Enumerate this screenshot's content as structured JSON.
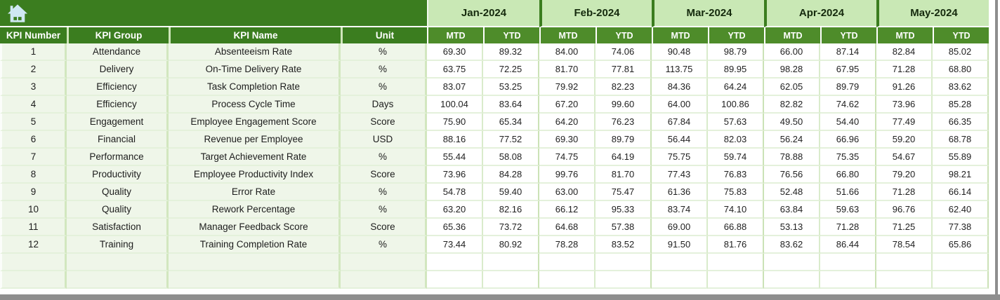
{
  "icons": {
    "home": "home-icon"
  },
  "colors": {
    "header_dark_green": "#3b7d1f",
    "subheader_green": "#4e8c2a",
    "month_header_green": "#c9e8b5",
    "row_tint": "#eff6e9",
    "grid_line_green": "#d9ebcb",
    "scrollbar_gray": "#8e8e8e"
  },
  "table": {
    "left_headers": [
      "KPI Number",
      "KPI Group",
      "KPI Name",
      "Unit"
    ],
    "months": [
      "Jan-2024",
      "Feb-2024",
      "Mar-2024",
      "Apr-2024",
      "May-2024"
    ],
    "sub_headers": [
      "MTD",
      "YTD"
    ],
    "empty_rows": 2,
    "rows": [
      {
        "num": "1",
        "group": "Attendance",
        "name": "Absenteeism Rate",
        "unit": "%",
        "values": [
          "69.30",
          "89.32",
          "84.00",
          "74.06",
          "90.48",
          "98.79",
          "66.00",
          "87.14",
          "82.84",
          "85.02"
        ]
      },
      {
        "num": "2",
        "group": "Delivery",
        "name": "On-Time Delivery Rate",
        "unit": "%",
        "values": [
          "63.75",
          "72.25",
          "81.70",
          "77.81",
          "113.75",
          "89.95",
          "98.28",
          "67.95",
          "71.28",
          "68.80"
        ]
      },
      {
        "num": "3",
        "group": "Efficiency",
        "name": "Task Completion Rate",
        "unit": "%",
        "values": [
          "83.07",
          "53.25",
          "79.92",
          "82.23",
          "84.36",
          "64.24",
          "62.05",
          "89.79",
          "91.26",
          "83.62"
        ]
      },
      {
        "num": "4",
        "group": "Efficiency",
        "name": "Process Cycle Time",
        "unit": "Days",
        "values": [
          "100.04",
          "83.64",
          "67.20",
          "99.60",
          "64.00",
          "100.86",
          "82.82",
          "74.62",
          "73.96",
          "85.28"
        ]
      },
      {
        "num": "5",
        "group": "Engagement",
        "name": "Employee Engagement Score",
        "unit": "Score",
        "values": [
          "75.90",
          "65.34",
          "64.20",
          "76.23",
          "67.84",
          "57.63",
          "49.50",
          "54.40",
          "77.49",
          "66.35"
        ]
      },
      {
        "num": "6",
        "group": "Financial",
        "name": "Revenue per Employee",
        "unit": "USD",
        "values": [
          "88.16",
          "77.52",
          "69.30",
          "89.79",
          "56.44",
          "82.03",
          "56.24",
          "66.96",
          "59.20",
          "68.78"
        ]
      },
      {
        "num": "7",
        "group": "Performance",
        "name": "Target Achievement Rate",
        "unit": "%",
        "values": [
          "55.44",
          "58.08",
          "74.75",
          "64.19",
          "75.75",
          "59.74",
          "78.88",
          "75.35",
          "54.67",
          "55.89"
        ]
      },
      {
        "num": "8",
        "group": "Productivity",
        "name": "Employee Productivity Index",
        "unit": "Score",
        "values": [
          "73.96",
          "84.28",
          "99.76",
          "81.70",
          "77.43",
          "76.83",
          "76.56",
          "66.80",
          "79.20",
          "98.21"
        ]
      },
      {
        "num": "9",
        "group": "Quality",
        "name": "Error Rate",
        "unit": "%",
        "values": [
          "54.78",
          "59.40",
          "63.00",
          "75.47",
          "61.36",
          "75.83",
          "52.48",
          "51.66",
          "71.28",
          "66.14"
        ]
      },
      {
        "num": "10",
        "group": "Quality",
        "name": "Rework Percentage",
        "unit": "%",
        "values": [
          "63.20",
          "82.16",
          "66.12",
          "95.33",
          "83.74",
          "74.10",
          "63.84",
          "59.63",
          "96.76",
          "62.40"
        ]
      },
      {
        "num": "11",
        "group": "Satisfaction",
        "name": "Manager Feedback Score",
        "unit": "Score",
        "values": [
          "65.36",
          "73.72",
          "64.68",
          "57.38",
          "69.00",
          "66.88",
          "53.13",
          "71.28",
          "71.25",
          "77.38"
        ]
      },
      {
        "num": "12",
        "group": "Training",
        "name": "Training Completion Rate",
        "unit": "%",
        "values": [
          "73.44",
          "80.92",
          "78.28",
          "83.52",
          "91.50",
          "81.76",
          "83.62",
          "86.44",
          "78.54",
          "65.86"
        ]
      }
    ]
  }
}
